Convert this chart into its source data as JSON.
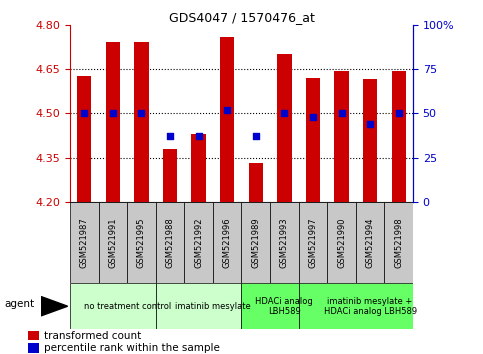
{
  "title": "GDS4047 / 1570476_at",
  "samples": [
    "GSM521987",
    "GSM521991",
    "GSM521995",
    "GSM521988",
    "GSM521992",
    "GSM521996",
    "GSM521989",
    "GSM521993",
    "GSM521997",
    "GSM521990",
    "GSM521994",
    "GSM521998"
  ],
  "transformed_count": [
    4.625,
    4.74,
    4.74,
    4.38,
    4.43,
    4.76,
    4.33,
    4.7,
    4.62,
    4.645,
    4.615,
    4.645
  ],
  "percentile_rank": [
    50,
    50,
    50,
    37,
    37,
    52,
    37,
    50,
    48,
    50,
    44,
    50
  ],
  "bar_color": "#cc0000",
  "dot_color": "#0000cc",
  "ylim_left": [
    4.2,
    4.8
  ],
  "ylim_right": [
    0,
    100
  ],
  "yticks_left": [
    4.2,
    4.35,
    4.5,
    4.65,
    4.8
  ],
  "yticks_right": [
    0,
    25,
    50,
    75,
    100
  ],
  "hlines": [
    4.35,
    4.5,
    4.65
  ],
  "groups": [
    {
      "label": "no treatment control",
      "start": 0,
      "end": 3,
      "color": "#ccffcc"
    },
    {
      "label": "imatinib mesylate",
      "start": 3,
      "end": 6,
      "color": "#ccffcc"
    },
    {
      "label": "HDACi analog\nLBH589",
      "start": 6,
      "end": 8,
      "color": "#66ff66"
    },
    {
      "label": "imatinib mesylate +\nHDACi analog LBH589",
      "start": 8,
      "end": 12,
      "color": "#66ff66"
    }
  ],
  "agent_label": "agent",
  "legend_items": [
    {
      "label": "transformed count",
      "color": "#cc0000"
    },
    {
      "label": "percentile rank within the sample",
      "color": "#0000cc"
    }
  ],
  "bar_width": 0.5,
  "ybase": 4.2,
  "tick_color_left": "#cc0000",
  "tick_color_right": "#0000cc",
  "dot_size": 25,
  "sample_box_color": "#c8c8c8",
  "group_colors": [
    "#ccffcc",
    "#ccffcc",
    "#88ee88",
    "#88ee88"
  ]
}
